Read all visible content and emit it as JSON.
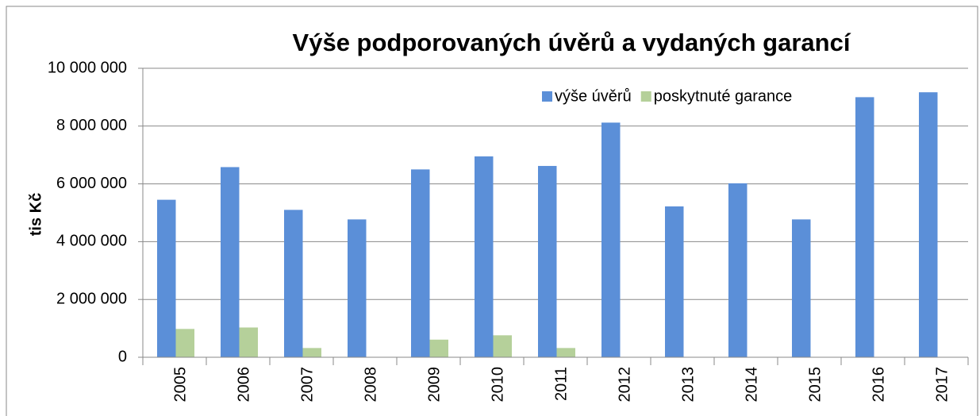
{
  "chart_data": {
    "type": "bar",
    "title": "Výše podporovaných úvěrů a vydaných garancí",
    "y_label": "tis Kč",
    "categories": [
      "2005",
      "2006",
      "2007",
      "2008",
      "2009",
      "2010",
      "2011",
      "2012",
      "2013",
      "2014",
      "2015",
      "2016",
      "2017"
    ],
    "series": [
      {
        "name": "výše úvěrů",
        "color": "#5b8fd8",
        "values": [
          5450000,
          6580000,
          5100000,
          4770000,
          6500000,
          6950000,
          6620000,
          8120000,
          5220000,
          6020000,
          4770000,
          9000000,
          9170000
        ]
      },
      {
        "name": "poskytnuté garance",
        "color": "#b5d09a",
        "values": [
          980000,
          1030000,
          320000,
          0,
          610000,
          760000,
          320000,
          0,
          0,
          0,
          0,
          0,
          0
        ]
      }
    ],
    "ylim": [
      0,
      10000000
    ],
    "yticks": [
      0,
      {
        "value": 2000000,
        "label": "2 000 000"
      },
      {
        "value": 4000000,
        "label": "4 000 000"
      },
      {
        "value": 6000000,
        "label": "6 000 000"
      },
      {
        "value": 8000000,
        "label": "8 000 000"
      },
      {
        "value": 10000000,
        "label": "10 000 000"
      }
    ],
    "grid": true,
    "legend": "top-right"
  }
}
